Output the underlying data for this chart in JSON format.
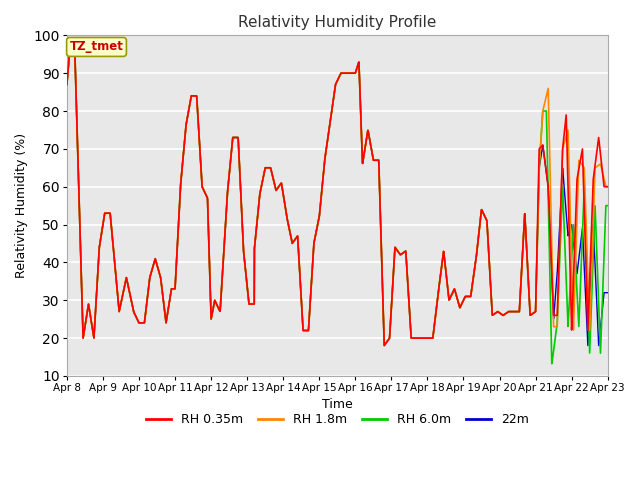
{
  "title": "Relativity Humidity Profile",
  "xlabel": "Time",
  "ylabel": "Relativity Humidity (%)",
  "ylim": [
    10,
    100
  ],
  "yticks": [
    10,
    20,
    30,
    40,
    50,
    60,
    70,
    80,
    90,
    100
  ],
  "figure_bg": "#ffffff",
  "plot_bg_color": "#e8e8e8",
  "annotation_text": "TZ_tmet",
  "annotation_bg": "#ffffcc",
  "annotation_border": "#999900",
  "annotation_text_color": "#cc0000",
  "line_colors": {
    "RH 0.35m": "#ff0000",
    "RH 1.8m": "#ff8800",
    "RH 6.0m": "#00cc00",
    "22m": "#0000cc"
  },
  "xtick_labels": [
    "Apr 8",
    "Apr 9",
    "Apr 10",
    "Apr 11",
    "Apr 12",
    "Apr 13",
    "Apr 14",
    "Apr 15",
    "Apr 16",
    "Apr 17",
    "Apr 18",
    "Apr 19",
    "Apr 20",
    "Apr 21",
    "Apr 22",
    "Apr 23"
  ]
}
